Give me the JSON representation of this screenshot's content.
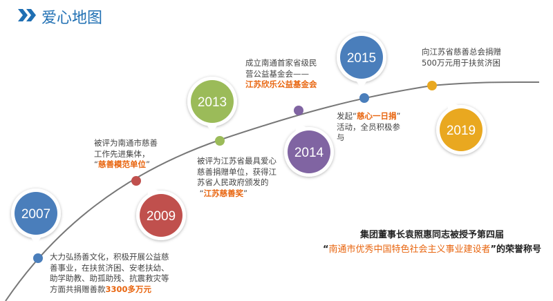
{
  "header": {
    "title": "爱心地图",
    "icon": "double-chevron-right-icon",
    "color": "#1f6fb3"
  },
  "milestones": [
    {
      "year": "2007",
      "color": "#4a7ebb",
      "lines": [
        "大力弘扬善文化，积极开展公益慈",
        "善事业，在扶贫济困、安老扶幼、",
        "助学助教、助孤助残、抗震救灾等"
      ],
      "last_prefix": "方面共捐赠善款",
      "highlight": "3300多万元"
    },
    {
      "year": "2009",
      "color": "#c0504d",
      "lines": [
        "被评为南通市慈善",
        "工作先进集体，"
      ],
      "highlight": "慈善模范单位"
    },
    {
      "year": "2013",
      "color": "#9bbb59",
      "lines": [
        "被评为江苏省最具爱心",
        "慈善捐赠单位，获得江",
        "苏省人民政府颁发的"
      ],
      "highlight": "江苏慈善奖"
    },
    {
      "year": "2014",
      "color": "#8064a2",
      "lines": [
        "成立南通首家省级民",
        "营公益基金会——"
      ],
      "highlight": "江苏欣乐公益基金会"
    },
    {
      "year": "2015",
      "color": "#4a7ebb",
      "prefix": "发起",
      "highlight": "慈心一日捐",
      "lines": [
        "活动，全员积极参",
        "与"
      ]
    },
    {
      "year": "2019",
      "color": "#e9a820",
      "lines": [
        "向江苏省慈善总会捐赠",
        "500万元用于扶贫济困"
      ]
    }
  ],
  "award": {
    "line1": "集团董事长袁照惠同志被授予第四届",
    "highlight": "南通市优秀中国特色社会主义事业建设者",
    "suffix": "的荣誉称号"
  },
  "accent": "#e8650f"
}
